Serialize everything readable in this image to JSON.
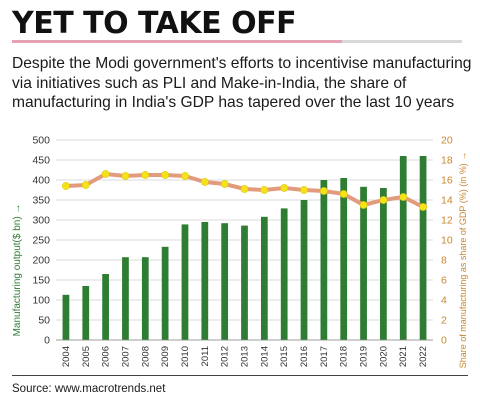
{
  "header": {
    "title": "YET TO TAKE OFF",
    "subtitle": "Despite the Modi government's efforts to incentivise manufacturing via initiatives such as PLI and Make-in-India, the share of manufacturing in India's GDP has tapered over the last 10 years"
  },
  "footer": {
    "source": "Source: www.macrotrends.net"
  },
  "colors": {
    "bar": "#2e7d32",
    "line": "#e39b7d",
    "marker": "#f4e31b",
    "left_axis": "#2e7d32",
    "right_axis": "#c9852f"
  },
  "chart_data": {
    "type": "bar+line",
    "categories": [
      "2004",
      "2005",
      "2006",
      "2007",
      "2008",
      "2009",
      "2010",
      "2011",
      "2012",
      "2013",
      "2014",
      "2015",
      "2016",
      "2017",
      "2018",
      "2019",
      "2020",
      "2021",
      "2022"
    ],
    "series": [
      {
        "name": "Manufacturing output($ bn)",
        "type": "bar",
        "axis": "left",
        "values": [
          113,
          135,
          165,
          207,
          207,
          233,
          289,
          295,
          292,
          286,
          308,
          329,
          350,
          400,
          405,
          383,
          380,
          460,
          460
        ]
      },
      {
        "name": "Share of manufacturing as share of GDP (%)",
        "type": "line",
        "axis": "right",
        "values": [
          15.4,
          15.5,
          16.6,
          16.4,
          16.5,
          16.5,
          16.4,
          15.8,
          15.6,
          15.1,
          15.0,
          15.2,
          15.0,
          14.9,
          14.6,
          13.5,
          14.0,
          14.3,
          13.3
        ]
      }
    ],
    "ylabel_left": "Manufacturing output($ bn) →",
    "ylabel_right": "Share of manufacturing as share of GDP (%) (in %) →",
    "ylim_left": [
      0,
      500
    ],
    "ylim_right": [
      0,
      20
    ],
    "yticks_left": [
      "0",
      "50",
      "100",
      "150",
      "200",
      "250",
      "300",
      "350",
      "400",
      "450",
      "500"
    ],
    "yticks_right": [
      "0",
      "2",
      "4",
      "6",
      "8",
      "10",
      "12",
      "14",
      "16",
      "18",
      "20"
    ],
    "grid": true
  }
}
